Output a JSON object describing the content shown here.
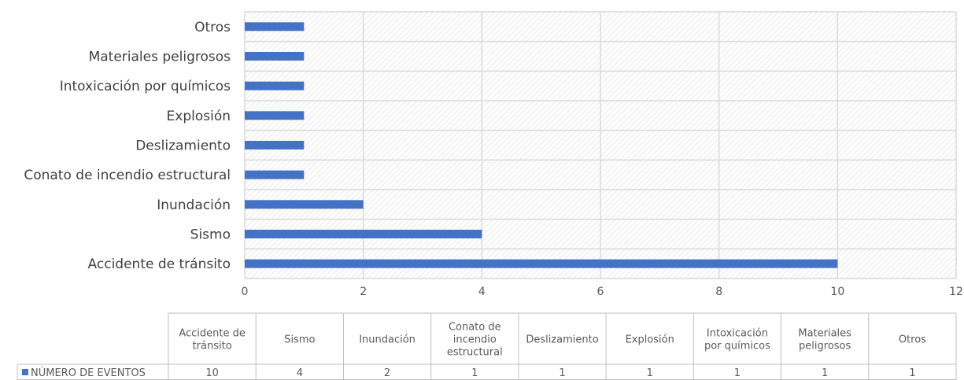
{
  "chart_data": {
    "type": "bar",
    "orientation": "horizontal",
    "categories": [
      "Accidente de tránsito",
      "Sismo",
      "Inundación",
      "Conato de incendio estructural",
      "Deslizamiento",
      "Explosión",
      "Intoxicación por químicos",
      "Materiales peligrosos",
      "Otros"
    ],
    "table_headers": [
      [
        "Accidente de",
        "tránsito"
      ],
      [
        "Sismo"
      ],
      [
        "Inundación"
      ],
      [
        "Conato de",
        "incendio",
        "estructural"
      ],
      [
        "Deslizamiento"
      ],
      [
        "Explosión"
      ],
      [
        "Intoxicación",
        "por químicos"
      ],
      [
        "Materiales",
        "peligrosos"
      ],
      [
        "Otros"
      ]
    ],
    "series": [
      {
        "name": "NÚMERO DE EVENTOS",
        "values": [
          10,
          4,
          2,
          1,
          1,
          1,
          1,
          1,
          1
        ],
        "color": "#4472C4"
      }
    ],
    "xlim": [
      0,
      12
    ],
    "xticks": [
      "0",
      "2",
      "4",
      "6",
      "8",
      "10",
      "12"
    ],
    "grid": true,
    "legend": "data-table",
    "colors": {
      "bar": "#4472C4",
      "grid": "#D9D9D9",
      "hatch": "#E6E6E6"
    }
  }
}
